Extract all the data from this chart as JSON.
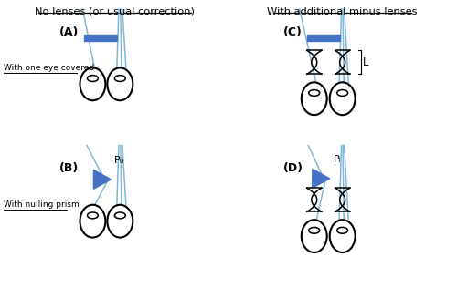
{
  "title_left": "No lenses (or usual correction)",
  "title_right": "With additional minus lenses",
  "label_A": "(A)",
  "label_B": "(B)",
  "label_C": "(C)",
  "label_D": "(D)",
  "label_row1": "With one eye covered",
  "label_row2": "With nulling prism",
  "label_P0": "P₀",
  "label_PL": "Pₗ",
  "label_L": "L",
  "eye_color": "black",
  "line_color": "#7EB8D8",
  "prism_color": "#4472C4",
  "rect_color": "#4472C4",
  "bg_color": "white",
  "lw_line": 1.1,
  "lw_eye": 1.5
}
